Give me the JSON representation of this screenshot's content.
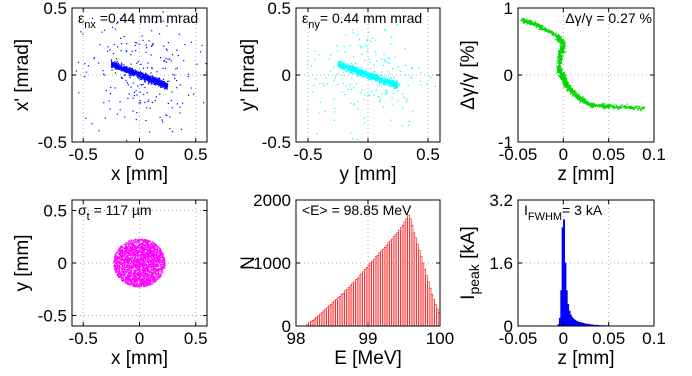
{
  "chart_data": [
    {
      "type": "scatter",
      "annotation": {
        "sym": "ε",
        "sub": "nx",
        "text": " =0.44 mm mrad"
      },
      "xlabel": {
        "main": "x [mm]"
      },
      "ylabel": {
        "main": "x' [mrad]"
      },
      "xlim": [
        -0.6,
        0.6
      ],
      "ylim": [
        -0.5,
        0.5
      ],
      "xticks": [
        -0.5,
        0,
        0.5
      ],
      "yticks": [
        -0.5,
        0,
        0.5
      ],
      "xticklabels": [
        "-0.5",
        "0",
        "0.5"
      ],
      "yticklabels": [
        "-0.5",
        "0",
        "0.5"
      ],
      "grid": true,
      "color": "#0000ff",
      "distribution": {
        "kind": "tilted-band",
        "x": [
          -0.25,
          0.25
        ],
        "y": [
          0.08,
          -0.08
        ],
        "band_sd": 0.012,
        "core_points": 900,
        "halo_points": 220,
        "halo_sd": [
          0.25,
          0.22
        ]
      }
    },
    {
      "type": "scatter",
      "annotation": {
        "sym": "ε",
        "sub": "ny",
        "text": "= 0.44 mm mrad"
      },
      "xlabel": {
        "main": "y [mm]"
      },
      "ylabel": {
        "main": "y' [mrad]"
      },
      "xlim": [
        -0.6,
        0.6
      ],
      "ylim": [
        -0.5,
        0.5
      ],
      "xticks": [
        -0.5,
        0,
        0.5
      ],
      "yticks": [
        -0.5,
        0,
        0.5
      ],
      "xticklabels": [
        "-0.5",
        "0",
        "0.5"
      ],
      "yticklabels": [
        "-0.5",
        "0",
        "0.5"
      ],
      "grid": true,
      "color": "#00ffff",
      "distribution": {
        "kind": "tilted-band",
        "x": [
          -0.25,
          0.25
        ],
        "y": [
          0.08,
          -0.08
        ],
        "band_sd": 0.012,
        "core_points": 900,
        "halo_points": 200,
        "halo_sd": [
          0.25,
          0.2
        ]
      }
    },
    {
      "type": "scatter",
      "annotation": {
        "sym": "",
        "sub": "",
        "text": "Δγ/γ = 0.27 %"
      },
      "xlabel": {
        "main": "z [mm]"
      },
      "ylabel": {
        "main": "Δγ/γ [%]"
      },
      "xlim": [
        -0.05,
        0.1
      ],
      "ylim": [
        -1,
        1
      ],
      "xticks": [
        -0.05,
        0,
        0.05,
        0.1
      ],
      "yticks": [
        -1,
        0,
        1
      ],
      "xticklabels": [
        "-0.05",
        "0",
        "0.05",
        "0.1"
      ],
      "yticklabels": [
        "-1",
        "0",
        "1"
      ],
      "grid": true,
      "color": "#00d800",
      "distribution": {
        "kind": "curve",
        "curve": [
          [
            0.09,
            -0.5
          ],
          [
            0.05,
            -0.47
          ],
          [
            0.03,
            -0.45
          ],
          [
            0.015,
            -0.32
          ],
          [
            0.005,
            -0.18
          ],
          [
            0.0,
            -0.05
          ],
          [
            -0.005,
            0.1
          ],
          [
            -0.003,
            0.32
          ],
          [
            0.0,
            0.45
          ],
          [
            -0.006,
            0.58
          ],
          [
            -0.03,
            0.75
          ],
          [
            -0.045,
            0.82
          ]
        ],
        "spread": [
          0.0015,
          0.015
        ],
        "points": 1400
      }
    },
    {
      "type": "scatter",
      "annotation": {
        "sym": "σ",
        "sub": "t",
        "text": " = 117 µm"
      },
      "xlabel": {
        "main": "x [mm]"
      },
      "ylabel": {
        "main": "y [mm]"
      },
      "xlim": [
        -0.6,
        0.6
      ],
      "ylim": [
        -0.6,
        0.6
      ],
      "xticks": [
        -0.5,
        0,
        0.5
      ],
      "yticks": [
        -0.5,
        0,
        0.5
      ],
      "xticklabels": [
        "-0.5",
        "0",
        "0.5"
      ],
      "yticklabels": [
        "-0.5",
        "0",
        "0.5"
      ],
      "grid": true,
      "color": "#ff00ff",
      "distribution": {
        "kind": "disk",
        "center": [
          0,
          0
        ],
        "radius": 0.23,
        "points": 2400
      }
    },
    {
      "type": "bar",
      "annotation": {
        "sym": "",
        "sub": "",
        "text": "<E> = 98.85 MeV"
      },
      "xlabel": {
        "main": "E [MeV]"
      },
      "ylabel": {
        "main": "N"
      },
      "xlim": [
        98,
        100
      ],
      "ylim": [
        0,
        2000
      ],
      "xticks": [
        98,
        99,
        100
      ],
      "yticks": [
        0,
        1000,
        2000
      ],
      "xticklabels": [
        "98",
        "99",
        "100"
      ],
      "yticklabels": [
        "0",
        "1000",
        "2000"
      ],
      "grid": true,
      "color": "#ff0000",
      "bins": {
        "start": 98.15,
        "width": 0.025,
        "values": [
          30,
          55,
          70,
          90,
          110,
          140,
          160,
          185,
          210,
          240,
          270,
          290,
          320,
          340,
          370,
          400,
          420,
          450,
          470,
          500,
          520,
          560,
          580,
          610,
          640,
          680,
          700,
          740,
          760,
          800,
          830,
          860,
          900,
          930,
          960,
          1000,
          1030,
          1060,
          1100,
          1120,
          1160,
          1190,
          1220,
          1250,
          1280,
          1320,
          1350,
          1380,
          1420,
          1450,
          1480,
          1520,
          1560,
          1600,
          1650,
          1700,
          1760,
          1700,
          1600,
          1480,
          1400,
          1300,
          1200,
          1100,
          1000,
          900,
          800,
          700,
          600,
          500,
          420,
          340,
          270,
          210,
          160,
          120,
          90,
          65,
          45,
          30,
          20,
          12
        ]
      }
    },
    {
      "type": "bar",
      "annotation": {
        "sym": "I",
        "sub": "FWHM",
        "text": "= 3 kA"
      },
      "xlabel": {
        "main": "z [mm]"
      },
      "ylabel": {
        "main": "I",
        "sub": "peak",
        "tail": " [kA]"
      },
      "xlim": [
        -0.05,
        0.1
      ],
      "ylim": [
        0,
        3.2
      ],
      "xticks": [
        -0.05,
        0,
        0.05,
        0.1
      ],
      "yticks": [
        0,
        1.6,
        3.2
      ],
      "xticklabels": [
        "-0.05",
        "0",
        "0.05",
        "0.1"
      ],
      "yticklabels": [
        "0",
        "1.6",
        "3.2"
      ],
      "grid": true,
      "color": "#0000ff",
      "bins": {
        "start": -0.006,
        "width": 0.0015,
        "values": [
          0.04,
          0.2,
          0.9,
          2.5,
          2.7,
          1.6,
          0.9,
          0.55,
          0.38,
          0.28,
          0.22,
          0.18,
          0.15,
          0.13,
          0.11,
          0.1,
          0.09,
          0.08,
          0.07,
          0.06,
          0.05,
          0.05,
          0.04,
          0.04,
          0.03,
          0.03,
          0.02,
          0.02,
          0.02,
          0.02,
          0.01,
          0.01,
          0.01,
          0.01,
          0.01,
          0.01
        ]
      }
    }
  ]
}
